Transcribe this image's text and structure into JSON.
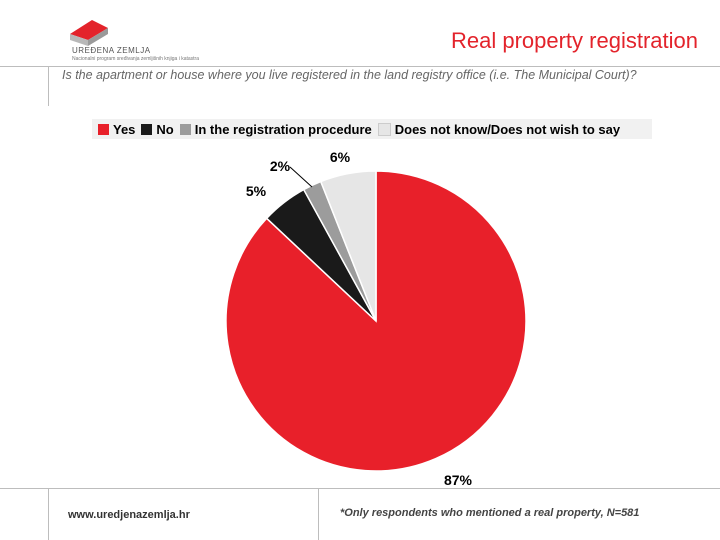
{
  "header": {
    "logo_name": "UREĐENA ZEMLJA",
    "logo_tagline": "Nacionalni program sređivanja zemljišnih knjiga i katastra",
    "title": "Real property registration"
  },
  "question": "Is the apartment or house where you live registered in the land registry office (i.e. The Municipal Court)?",
  "legend": [
    {
      "label": "Yes",
      "color": "#e8202a"
    },
    {
      "label": "No",
      "color": "#1a1a1a"
    },
    {
      "label": "In the registration procedure",
      "color": "#9c9c9c"
    },
    {
      "label": "Does not know/Does not wish to say",
      "color": "#e6e6e6"
    }
  ],
  "chart_data": {
    "type": "pie",
    "title": "Real property registration",
    "slices": [
      {
        "label": "Yes",
        "value": 87,
        "display": "87%",
        "color": "#e8202a"
      },
      {
        "label": "No",
        "value": 5,
        "display": "5%",
        "color": "#1a1a1a"
      },
      {
        "label": "In the registration procedure",
        "value": 2,
        "display": "2%",
        "color": "#9c9c9c"
      },
      {
        "label": "Does not know/Does not wish to say",
        "value": 6,
        "display": "6%",
        "color": "#e6e6e6"
      }
    ],
    "start": "12 o'clock",
    "direction": "clockwise",
    "legend_position": "top"
  },
  "footer": {
    "website": "www.uredjenazemlja.hr",
    "note": "*Only respondents who mentioned a real property, N=581"
  }
}
